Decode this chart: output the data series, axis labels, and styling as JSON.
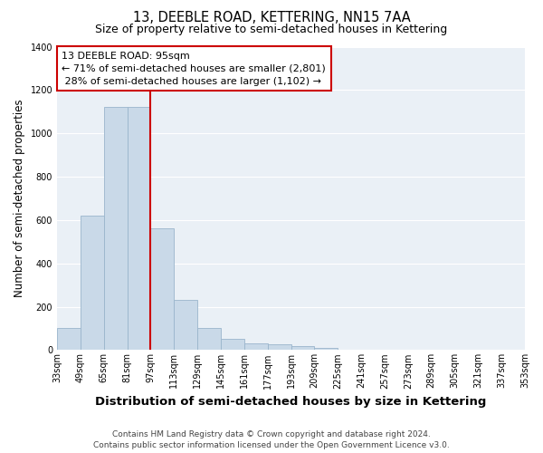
{
  "title": "13, DEEBLE ROAD, KETTERING, NN15 7AA",
  "subtitle": "Size of property relative to semi-detached houses in Kettering",
  "xlabel": "Distribution of semi-detached houses by size in Kettering",
  "ylabel": "Number of semi-detached properties",
  "bar_color": "#c9d9e8",
  "bar_edge_color": "#9ab5cc",
  "bg_color": "#eaf0f6",
  "grid_color": "#ffffff",
  "annotation_box_text": "13 DEEBLE ROAD: 95sqm\n← 71% of semi-detached houses are smaller (2,801)\n 28% of semi-detached houses are larger (1,102) →",
  "annotation_box_color": "#ffffff",
  "annotation_box_edge_color": "#cc0000",
  "marker_line_color": "#cc0000",
  "bins": [
    33,
    49,
    65,
    81,
    97,
    113,
    129,
    145,
    161,
    177,
    193,
    209,
    225,
    241,
    257,
    273,
    289,
    305,
    321,
    337,
    353
  ],
  "bar_values": [
    100,
    620,
    1120,
    1120,
    560,
    230,
    100,
    52,
    30,
    25,
    20,
    10,
    0,
    0,
    0,
    0,
    0,
    0,
    0,
    0
  ],
  "ylim": [
    0,
    1400
  ],
  "yticks": [
    0,
    200,
    400,
    600,
    800,
    1000,
    1200,
    1400
  ],
  "footer_text": "Contains HM Land Registry data © Crown copyright and database right 2024.\nContains public sector information licensed under the Open Government Licence v3.0.",
  "title_fontsize": 10.5,
  "subtitle_fontsize": 9,
  "xlabel_fontsize": 9.5,
  "ylabel_fontsize": 8.5,
  "tick_fontsize": 7,
  "annotation_fontsize": 8,
  "footer_fontsize": 6.5
}
